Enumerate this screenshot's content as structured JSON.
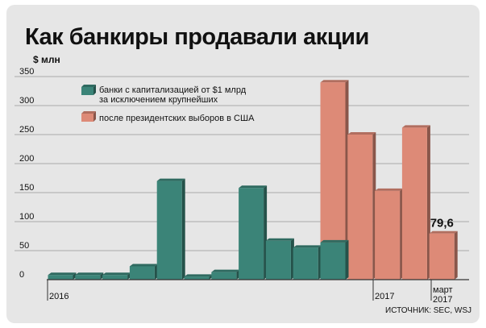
{
  "header": {
    "title": "Как банкиры продавали акции",
    "unit": "$ млн",
    "source": "ИСТОЧНИК: SEC, WSJ"
  },
  "chart_data": {
    "type": "bar",
    "ylim": [
      0,
      350
    ],
    "yticks": [
      0,
      50,
      100,
      150,
      200,
      250,
      300,
      350
    ],
    "grid": true,
    "legend_placement": "top-left",
    "x_labels": [
      "2016",
      "2017",
      "март 2017"
    ],
    "series": [
      {
        "name": "банки с капитализацией от $1 млрд за исключением крупнейших",
        "color": "#3b8478",
        "values": [
          8,
          8,
          8,
          23,
          170,
          5,
          13,
          158,
          67,
          55,
          64,
          null,
          null,
          null,
          null,
          null
        ]
      },
      {
        "name": "после президентских выборов в США",
        "color": "#dd8a77",
        "values": [
          null,
          null,
          null,
          null,
          null,
          null,
          null,
          null,
          null,
          null,
          340,
          250,
          153,
          262,
          79.6,
          null
        ]
      }
    ],
    "annotations": [
      {
        "text": "79,6",
        "value": 79.6
      }
    ]
  }
}
